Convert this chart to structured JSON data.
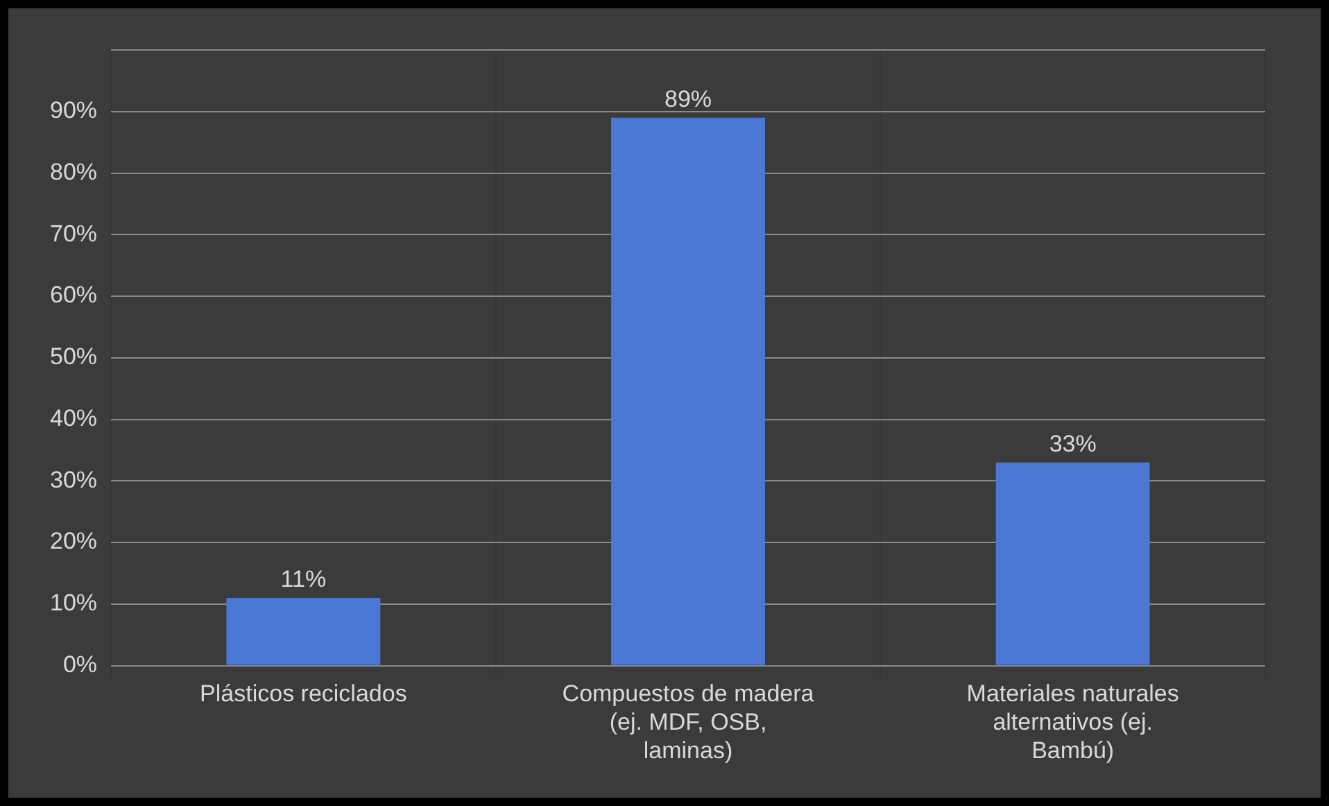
{
  "chart_data": {
    "type": "bar",
    "categories": [
      "Plásticos reciclados",
      "Compuestos de madera (ej. MDF, OSB, laminas)",
      "Materiales naturales alternativos (ej. Bambú)"
    ],
    "values": [
      11,
      89,
      33
    ],
    "value_labels": [
      "11%",
      "89%",
      "33%"
    ],
    "color": "#4a78d4",
    "ylim": [
      0,
      100
    ],
    "yticks": [
      {
        "value": 0,
        "label": "0%"
      },
      {
        "value": 10,
        "label": "10%"
      },
      {
        "value": 20,
        "label": "20%"
      },
      {
        "value": 30,
        "label": "30%"
      },
      {
        "value": 40,
        "label": "40%"
      },
      {
        "value": 50,
        "label": "50%"
      },
      {
        "value": 60,
        "label": "60%"
      },
      {
        "value": 70,
        "label": "70%"
      },
      {
        "value": 80,
        "label": "80%"
      },
      {
        "value": 90,
        "label": "90%"
      },
      {
        "value": 100,
        "label": null
      }
    ],
    "grid": true
  }
}
